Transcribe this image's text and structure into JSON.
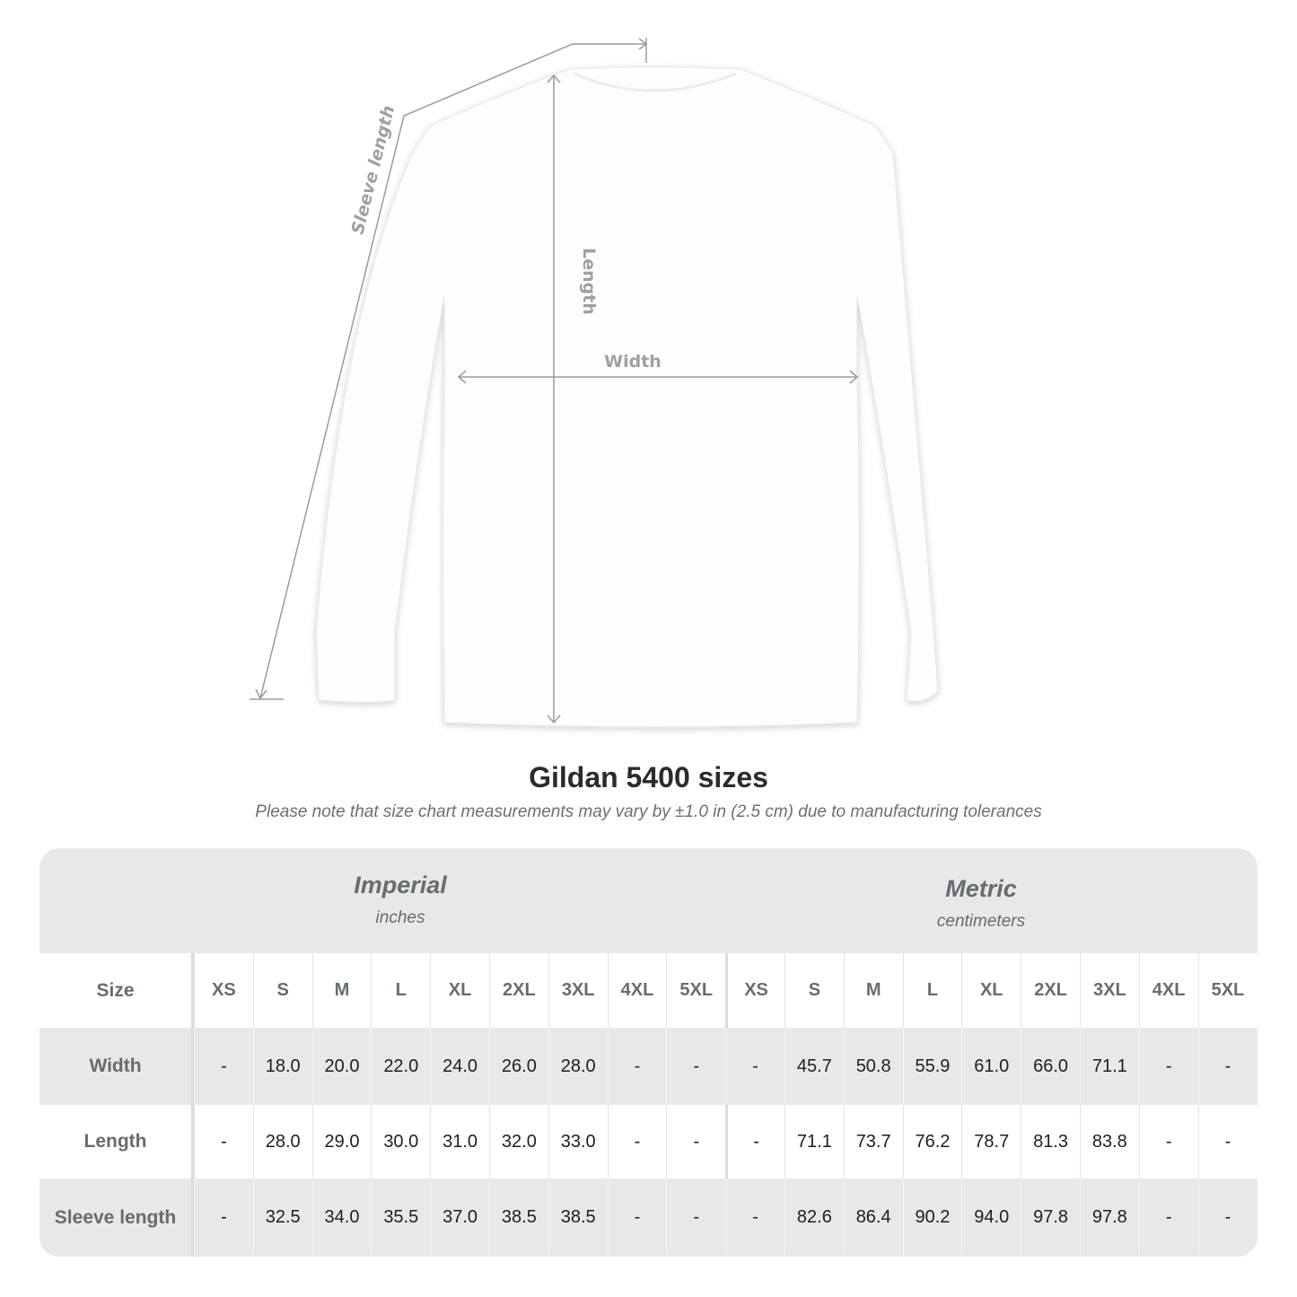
{
  "diagram": {
    "sleeve_label": "Sleeve length",
    "length_label": "Length",
    "width_label": "Width"
  },
  "title": "Gildan 5400 sizes",
  "note": "Please note that size chart measurements may vary by ±1.0 in (2.5 cm) due to manufacturing tolerances",
  "table": {
    "imperial": {
      "name": "Imperial",
      "unit": "inches"
    },
    "metric": {
      "name": "Metric",
      "unit": "centimeters"
    },
    "size_label": "Size",
    "sizes": [
      "XS",
      "S",
      "M",
      "L",
      "XL",
      "2XL",
      "3XL",
      "4XL",
      "5XL",
      "XS",
      "S",
      "M",
      "L",
      "XL",
      "2XL",
      "3XL",
      "4XL",
      "5XL"
    ],
    "rows": [
      {
        "label": "Width",
        "values": [
          "-",
          "18.0",
          "20.0",
          "22.0",
          "24.0",
          "26.0",
          "28.0",
          "-",
          "-",
          "-",
          "45.7",
          "50.8",
          "55.9",
          "61.0",
          "66.0",
          "71.1",
          "-",
          "-"
        ]
      },
      {
        "label": "Length",
        "values": [
          "-",
          "28.0",
          "29.0",
          "30.0",
          "31.0",
          "32.0",
          "33.0",
          "-",
          "-",
          "-",
          "71.1",
          "73.7",
          "76.2",
          "78.7",
          "81.3",
          "83.8",
          "-",
          "-"
        ]
      },
      {
        "label": "Sleeve length",
        "values": [
          "-",
          "32.5",
          "34.0",
          "35.5",
          "37.0",
          "38.5",
          "38.5",
          "-",
          "-",
          "-",
          "82.6",
          "86.4",
          "90.2",
          "94.0",
          "97.8",
          "97.8",
          "-",
          "-"
        ]
      }
    ]
  }
}
